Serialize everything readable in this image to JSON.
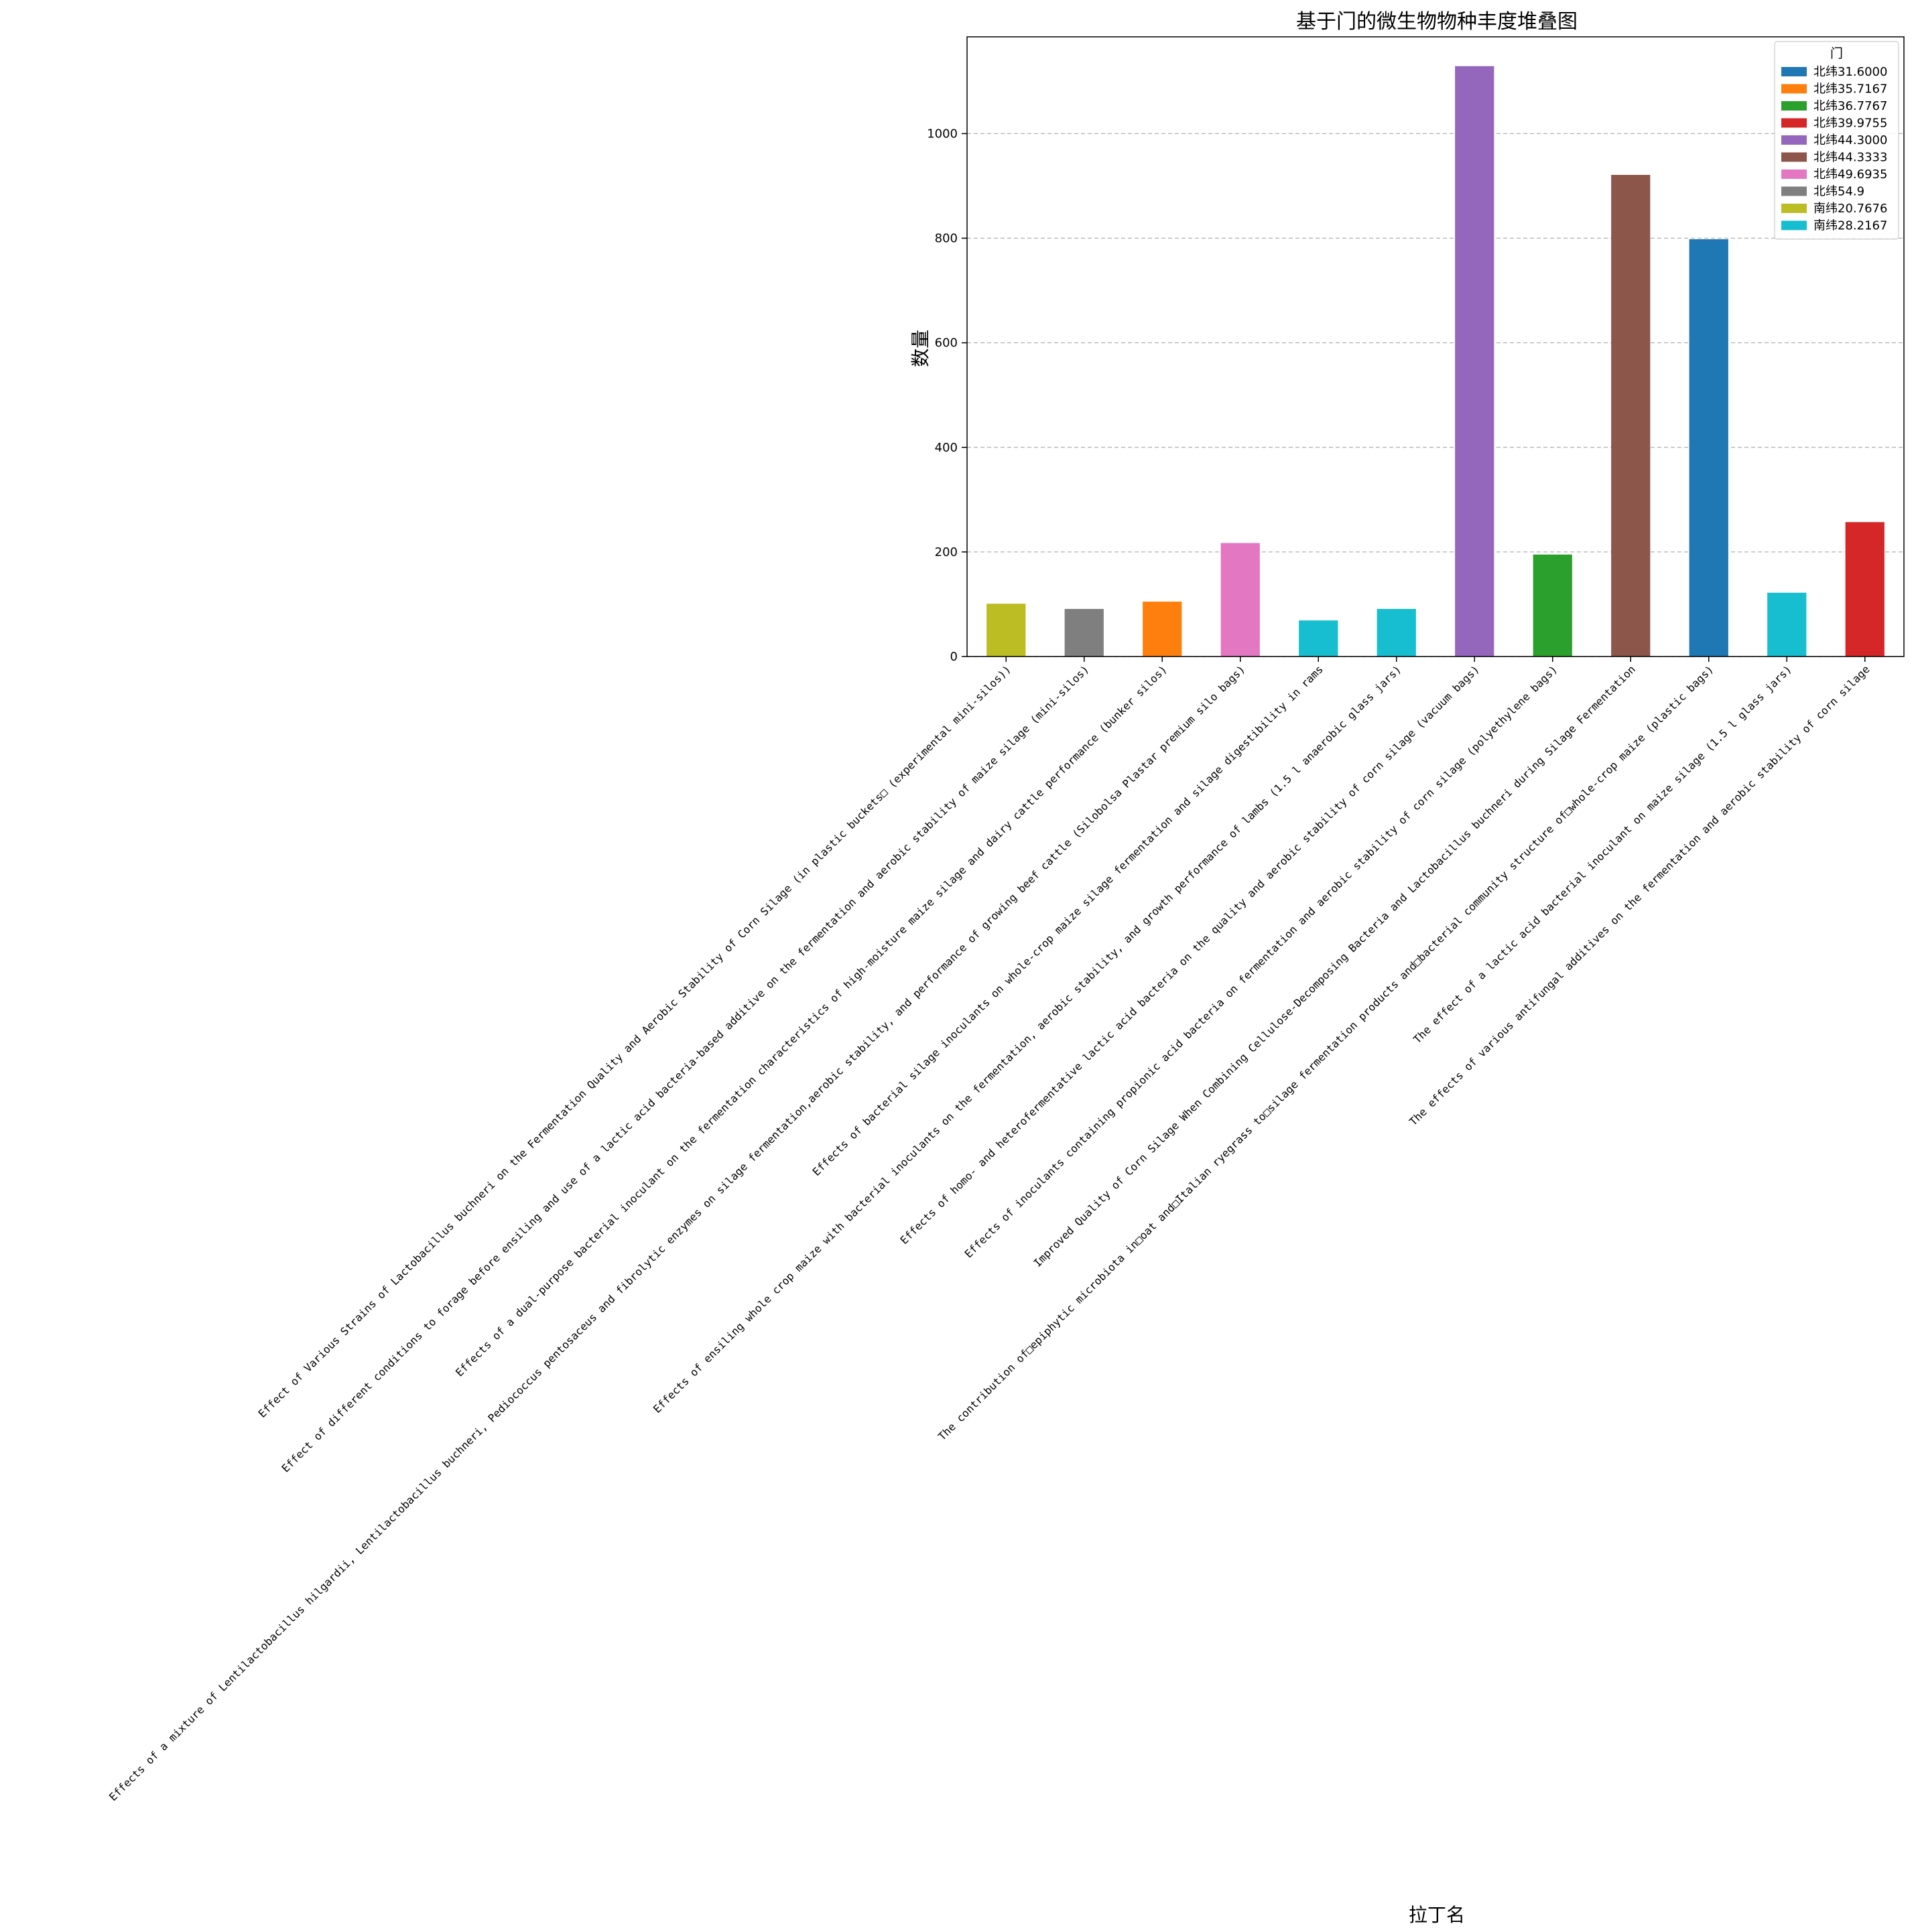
{
  "chart_data": {
    "type": "bar",
    "title": "基于门的微生物物种丰度堆叠图",
    "xlabel": "拉丁名",
    "ylabel": "数量",
    "ylim": [
      0,
      1185
    ],
    "yticks": [
      0,
      200,
      400,
      600,
      800,
      1000
    ],
    "grid": "y-dashed",
    "legend_title": "门",
    "legend_position": "top-right",
    "categories": [
      "Effect of Various Strains of Lactobacillus buchneri on the Fermentation Quality and Aerobic Stability of Corn Silage (in plastic buckets□ (experimental mini-silos))",
      "Effect of different conditions to forage before ensiling and use of a lactic acid bacteria-based additive on the fermentation and aerobic stability of maize silage (mini-silos)",
      "Effects of a dual-purpose bacterial inoculant on the fermentation characteristics of high-moisture maize silage and dairy cattle performance (bunker silos)",
      "Effects of a mixture of Lentilactobacillus hilgardii, Lentilactobacillus buchneri, Pediococcus pentosaceus and fibrolytic enzymes on silage fermentation,aerobic stability, and performance of growing beef cattle (Silobolsa Plastar premium silo bags)",
      "Effects of bacterial silage inoculants on whole-crop maize silage fermentation and silage digestibility in rams",
      "Effects of ensiling whole crop maize with bacterial inoculants on the fermentation, aerobic stability, and growth performance of lambs (1.5 l anaerobic glass jars)",
      "Effects of homo- and heterofermentative lactic acid bacteria on the quality and aerobic stability of corn silage (vacuum bags)",
      "Effects of inoculants containing propionic acid bacteria on fermentation and aerobic stability of corn silage (polyethylene bags)",
      "Improved Quality of Corn Silage When Combining Cellulose-Decomposing Bacteria and Lactobacillus buchneri during Silage Fermentation",
      "The contribution of□epiphytic microbiota in□oat and□Italian ryegrass to□silage fermentation products and□bacterial community structure of□whole-crop maize (plastic bags)",
      "The effect of a lactic acid bacterial inoculant on maize silage (1.5 l glass jars)",
      "The effects of various antifungal additives on the fermentation and aerobic stability of corn silage"
    ],
    "values": [
      101,
      91,
      105,
      217,
      69,
      91,
      1129,
      195,
      921,
      798,
      122,
      257
    ],
    "bar_series": [
      "南纬20.7676",
      "北纬54.9",
      "北纬35.7167",
      "北纬49.6935",
      "南纬28.2167",
      "南纬28.2167",
      "北纬44.3000",
      "北纬36.7767",
      "北纬44.3333",
      "北纬31.6000",
      "南纬28.2167",
      "北纬39.9755"
    ],
    "series": [
      {
        "name": "北纬31.6000",
        "color": "#1f77b4"
      },
      {
        "name": "北纬35.7167",
        "color": "#ff7f0e"
      },
      {
        "name": "北纬36.7767",
        "color": "#2ca02c"
      },
      {
        "name": "北纬39.9755",
        "color": "#d62728"
      },
      {
        "name": "北纬44.3000",
        "color": "#9467bd"
      },
      {
        "name": "北纬44.3333",
        "color": "#8c564b"
      },
      {
        "name": "北纬49.6935",
        "color": "#e377c2"
      },
      {
        "name": "北纬54.9",
        "color": "#7f7f7f"
      },
      {
        "name": "南纬20.7676",
        "color": "#bcbd22"
      },
      {
        "name": "南纬28.2167",
        "color": "#17becf"
      }
    ]
  }
}
